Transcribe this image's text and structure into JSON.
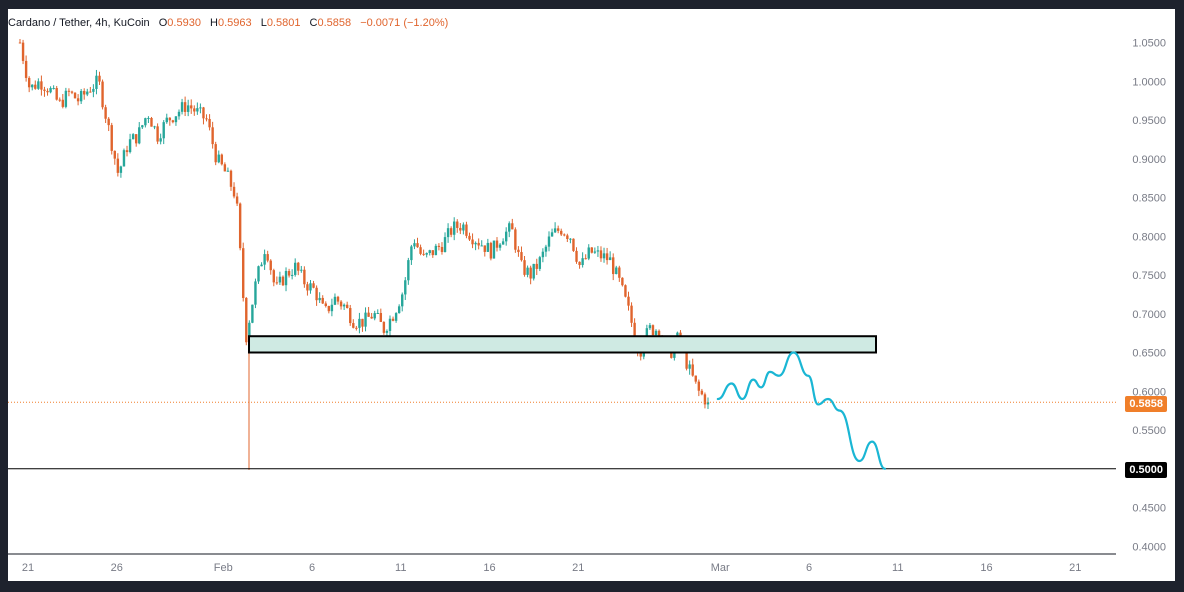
{
  "legend": {
    "symbol": "Cardano / Tether, 4h, KuCoin",
    "open_label": "O",
    "open": "0.5930",
    "high_label": "H",
    "high": "0.5963",
    "low_label": "L",
    "low": "0.5801",
    "close_label": "C",
    "close": "0.5858",
    "change": "−0.0071 (−1.20%)"
  },
  "price_tags": {
    "last": "0.5858",
    "level": "0.5000"
  },
  "colors": {
    "up": "#26a69a",
    "down": "#e0642d",
    "projection": "#1ab6d4",
    "zone_fill": "#cfeae3",
    "text": "#131722",
    "axis_text": "#787b86"
  },
  "chart_data": {
    "type": "candlestick",
    "symbol": "Cardano / Tether",
    "timeframe": "4h",
    "exchange": "KuCoin",
    "x_ticks": [
      "21",
      "26",
      "Feb",
      "6",
      "11",
      "16",
      "21",
      "Mar",
      "6",
      "11",
      "16",
      "21"
    ],
    "y_ticks": [
      "1.0500",
      "1.0000",
      "0.9500",
      "0.9000",
      "0.8500",
      "0.8000",
      "0.7500",
      "0.7000",
      "0.6500",
      "0.6000",
      "0.5500",
      "0.5000",
      "0.4500",
      "0.4000"
    ],
    "ylim": [
      0.4,
      1.07
    ],
    "price_path": [
      [
        0,
        1.05
      ],
      [
        1,
        0.99
      ],
      [
        2,
        1.0
      ],
      [
        3,
        0.99
      ],
      [
        4,
        0.97
      ],
      [
        5,
        0.985
      ],
      [
        6,
        0.975
      ],
      [
        7,
        0.99
      ],
      [
        8,
        1.0
      ],
      [
        9,
        0.94
      ],
      [
        10,
        0.88
      ],
      [
        11,
        0.92
      ],
      [
        12,
        0.93
      ],
      [
        13,
        0.96
      ],
      [
        14,
        0.93
      ],
      [
        15,
        0.95
      ],
      [
        16,
        0.96
      ],
      [
        17,
        0.97
      ],
      [
        18,
        0.96
      ],
      [
        19,
        0.95
      ],
      [
        20,
        0.9
      ],
      [
        21,
        0.88
      ],
      [
        22,
        0.85
      ],
      [
        23,
        0.67
      ],
      [
        24,
        0.74
      ],
      [
        25,
        0.79
      ],
      [
        26,
        0.73
      ],
      [
        27,
        0.75
      ],
      [
        28,
        0.76
      ],
      [
        29,
        0.74
      ],
      [
        30,
        0.73
      ],
      [
        31,
        0.7
      ],
      [
        32,
        0.72
      ],
      [
        33,
        0.71
      ],
      [
        34,
        0.69
      ],
      [
        35,
        0.69
      ],
      [
        36,
        0.7
      ],
      [
        37,
        0.68
      ],
      [
        38,
        0.7
      ],
      [
        39,
        0.73
      ],
      [
        40,
        0.8
      ],
      [
        41,
        0.77
      ],
      [
        42,
        0.78
      ],
      [
        43,
        0.79
      ],
      [
        44,
        0.81
      ],
      [
        45,
        0.815
      ],
      [
        46,
        0.8
      ],
      [
        47,
        0.79
      ],
      [
        48,
        0.78
      ],
      [
        49,
        0.8
      ],
      [
        50,
        0.81
      ],
      [
        51,
        0.76
      ],
      [
        52,
        0.75
      ],
      [
        53,
        0.77
      ],
      [
        54,
        0.8
      ],
      [
        55,
        0.81
      ],
      [
        56,
        0.8
      ],
      [
        57,
        0.76
      ],
      [
        58,
        0.78
      ],
      [
        59,
        0.775
      ],
      [
        60,
        0.77
      ],
      [
        61,
        0.74
      ],
      [
        62,
        0.7
      ],
      [
        63,
        0.65
      ],
      [
        64,
        0.68
      ],
      [
        65,
        0.68
      ],
      [
        66,
        0.645
      ],
      [
        67,
        0.67
      ],
      [
        68,
        0.63
      ],
      [
        69,
        0.6
      ],
      [
        70,
        0.5858
      ]
    ],
    "candle_count": 226,
    "wick_low": {
      "day": 23.3,
      "value": 0.4985
    },
    "support_zone": {
      "from_day": 23.3,
      "to_day": 96.6,
      "low": 0.65,
      "high": 0.671
    },
    "horizontal_line": 0.5,
    "last_price": 0.5858,
    "projection": [
      [
        71.0,
        0.59
      ],
      [
        72.4,
        0.61
      ],
      [
        73.5,
        0.59
      ],
      [
        74.6,
        0.615
      ],
      [
        75.4,
        0.605
      ],
      [
        76.3,
        0.625
      ],
      [
        77.2,
        0.62
      ],
      [
        78.7,
        0.65
      ],
      [
        80.2,
        0.62
      ],
      [
        81.2,
        0.583
      ],
      [
        82.2,
        0.59
      ],
      [
        83.4,
        0.575
      ],
      [
        85.4,
        0.51
      ],
      [
        86.7,
        0.535
      ],
      [
        88.0,
        0.5
      ]
    ]
  }
}
